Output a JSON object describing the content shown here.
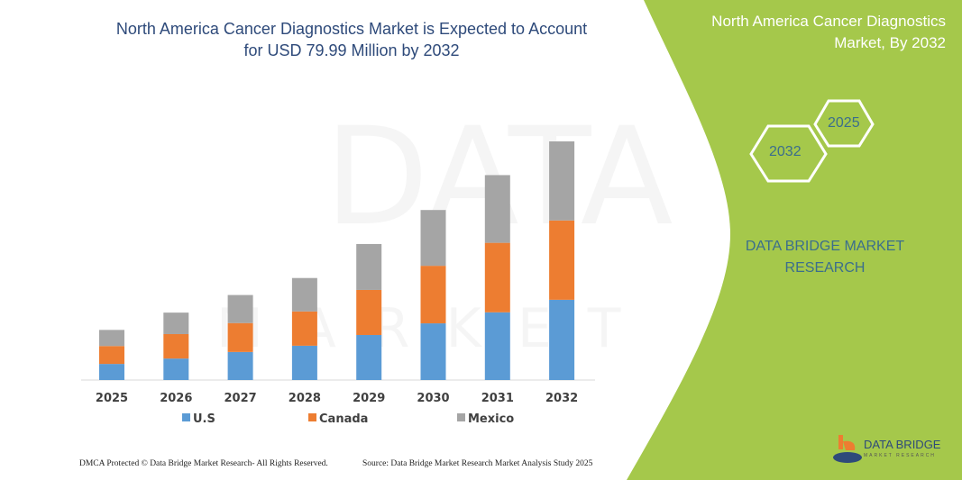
{
  "title": "North America Cancer Diagnostics Market is Expected to Account for USD 79.99 Million by 2032",
  "panel": {
    "title": "North America Cancer Diagnostics Market, By 2032",
    "hex_start": "2025",
    "hex_end": "2032",
    "brand": "DATA BRIDGE MARKET RESEARCH",
    "color": "#a5c84b"
  },
  "watermark": {
    "line1": "DATA BRIDGE",
    "line2": "MARKET RESEARCH"
  },
  "logo": {
    "name": "DATA BRIDGE",
    "sub": "MARKET RESEARCH"
  },
  "footer": {
    "left": "DMCA Protected © Data Bridge Market Research- All Rights Reserved.",
    "right": "Source: Data Bridge Market Research Market Analysis Study 2025"
  },
  "chart_data": {
    "type": "bar",
    "stacked": true,
    "title": "North America Cancer Diagnostics Market is Expected to Account for USD 79.99 Million by 2032",
    "categories": [
      "2025",
      "2026",
      "2027",
      "2028",
      "2029",
      "2030",
      "2031",
      "2032"
    ],
    "series": [
      {
        "name": "U.S",
        "color": "#5b9bd5",
        "values": [
          5.4,
          7.2,
          9.4,
          11.5,
          15.1,
          19.0,
          22.7,
          26.9
        ]
      },
      {
        "name": "Canada",
        "color": "#ed7d31",
        "values": [
          6.0,
          8.2,
          9.7,
          11.5,
          15.1,
          19.3,
          23.3,
          26.6
        ]
      },
      {
        "name": "Mexico",
        "color": "#a5a5a5",
        "values": [
          5.4,
          7.2,
          9.4,
          11.2,
          15.4,
          18.7,
          22.7,
          26.5
        ]
      }
    ],
    "ylim": [
      0,
      80
    ],
    "grid": false,
    "y_axis_shown": false,
    "legend_position": "bottom"
  }
}
